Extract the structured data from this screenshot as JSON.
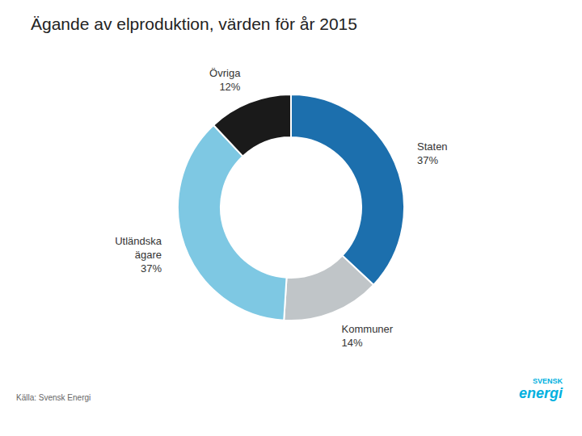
{
  "chart_data": {
    "type": "pie",
    "title": "Ägande av elproduktion, värden för år 2015",
    "categories": [
      "Staten",
      "Kommuner",
      "Utländska\nägare",
      "Övriga"
    ],
    "values": [
      37,
      14,
      37,
      12
    ],
    "value_labels": [
      "37%",
      "14%",
      "37%",
      "12%"
    ],
    "colors": [
      "#1c6fad",
      "#c0c5c8",
      "#7ec8e3",
      "#1a1a1a"
    ],
    "data_labels": true,
    "annotations": [
      {
        "text": "Källa: Svensk Energi"
      },
      {
        "text": "SVENSK",
        "color": "#00b0e0"
      },
      {
        "text": "energi",
        "color": "#00b0e0"
      }
    ]
  }
}
